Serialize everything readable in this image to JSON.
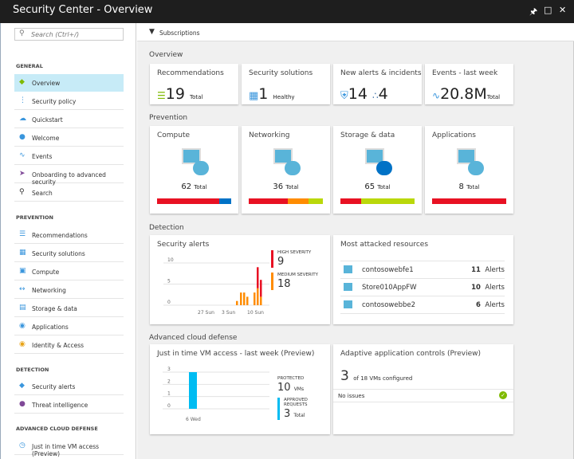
{
  "window": {
    "title": "Security Center - Overview",
    "icons": [
      "pin-icon",
      "maximize-icon",
      "close-icon"
    ]
  },
  "sidebar": {
    "search_placeholder": "Search (Ctrl+/)",
    "sections": [
      {
        "label": "GENERAL",
        "items": [
          "Overview",
          "Security policy",
          "Quickstart",
          "Welcome",
          "Events",
          "Onboarding to advanced security",
          "Search"
        ]
      },
      {
        "label": "PREVENTION",
        "items": [
          "Recommendations",
          "Security solutions",
          "Compute",
          "Networking",
          "Storage & data",
          "Applications",
          "Identity & Access"
        ]
      },
      {
        "label": "DETECTION",
        "items": [
          "Security alerts",
          "Threat intelligence"
        ]
      },
      {
        "label": "ADVANCED CLOUD DEFENSE",
        "items": [
          "Just in time VM access (Preview)"
        ]
      }
    ],
    "active": "Overview"
  },
  "toolbar": {
    "subscriptions": "Subscriptions"
  },
  "overview": {
    "label": "Overview",
    "recommendations": {
      "title": "Recommendations",
      "value": "19",
      "unit": "Total"
    },
    "solutions": {
      "title": "Security solutions",
      "value": "1",
      "unit": "Healthy"
    },
    "alerts": {
      "title": "New alerts & incidents",
      "alerts": "14",
      "incidents": "4"
    },
    "events": {
      "title": "Events - last week",
      "value": "20.8M",
      "unit": "Total"
    }
  },
  "prevention": {
    "label": "Prevention",
    "unit": "Total",
    "tiles": [
      {
        "title": "Compute",
        "count": "62",
        "bar": [
          {
            "pct": 84,
            "color": "#e81123"
          },
          {
            "pct": 16,
            "color": "#0072c6"
          }
        ]
      },
      {
        "title": "Networking",
        "count": "36",
        "bar": [
          {
            "pct": 53,
            "color": "#e81123"
          },
          {
            "pct": 28,
            "color": "#ff8c00"
          },
          {
            "pct": 19,
            "color": "#bad80a"
          }
        ]
      },
      {
        "title": "Storage & data",
        "count": "65",
        "bar": [
          {
            "pct": 28,
            "color": "#e81123"
          },
          {
            "pct": 72,
            "color": "#bad80a"
          }
        ]
      },
      {
        "title": "Applications",
        "count": "8",
        "bar": [
          {
            "pct": 100,
            "color": "#e81123"
          }
        ]
      }
    ]
  },
  "detection": {
    "label": "Detection",
    "security_alerts": {
      "title": "Security alerts",
      "high_label": "HIGH SEVERITY",
      "high": "9",
      "medium_label": "MEDIUM SEVERITY",
      "medium": "18"
    },
    "chart_data": {
      "type": "bar",
      "stacked": true,
      "ylim": [
        0,
        10
      ],
      "yticks": [
        "10",
        "5",
        "0"
      ],
      "xticks": [
        "27 Sun",
        "3 Sun",
        "10 Sun"
      ],
      "series": [
        {
          "color": "#ff8c00",
          "values": [
            1,
            3,
            3,
            2,
            3,
            4,
            2
          ]
        },
        {
          "color": "#e81123",
          "values": [
            0,
            0,
            0,
            0,
            0,
            5,
            4
          ]
        }
      ]
    },
    "most_attacked": {
      "title": "Most attacked resources",
      "unit": "Alerts",
      "rows": [
        {
          "name": "contosowebfe1",
          "count": "11"
        },
        {
          "name": "Store010AppFW",
          "count": "10"
        },
        {
          "name": "contosowebbe2",
          "count": "6"
        }
      ]
    }
  },
  "advanced": {
    "label": "Advanced cloud defense",
    "jit": {
      "title": "Just in time VM access - last week (Preview)",
      "protected_label": "PROTECTED",
      "protected": "10",
      "protected_unit": "VMs",
      "approved_label": "APPROVED REQUESTS",
      "approved": "3",
      "approved_unit": "Total",
      "chart_data": {
        "type": "bar",
        "ylim": [
          0,
          3
        ],
        "yticks": [
          "3",
          "2",
          "1",
          "0"
        ],
        "categories": [
          "6 Wed"
        ],
        "values": [
          3
        ],
        "color": "#00bcf2"
      }
    },
    "adaptive": {
      "title": "Adaptive application controls (Preview)",
      "configured": "3",
      "of_text": "of 18 VMs configured",
      "status": "No issues"
    }
  }
}
